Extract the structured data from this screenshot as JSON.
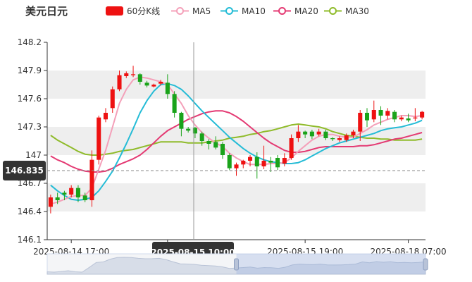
{
  "title": "美元日元",
  "legend": [
    {
      "label": "60分K线",
      "color": "#ee1111",
      "kind": "rect"
    },
    {
      "label": "MA5",
      "color": "#f4a0b9",
      "kind": "line"
    },
    {
      "label": "MA10",
      "color": "#25bcd6",
      "kind": "line"
    },
    {
      "label": "MA20",
      "color": "#e43a73",
      "kind": "line"
    },
    {
      "label": "MA30",
      "color": "#8fbb2a",
      "kind": "line"
    }
  ],
  "colors": {
    "up": "#ee1111",
    "down": "#1aa31a",
    "grid_band": "#eeeeee",
    "axis": "#333333"
  },
  "crosshair": {
    "price_label": "146.835",
    "time_label": "2025-08-15 10:00"
  },
  "chart_data": {
    "type": "candlestick",
    "ylim": [
      146.1,
      148.2
    ],
    "yticks": [
      "148.2",
      "147.9",
      "147.6",
      "147.3",
      "147",
      "146.7",
      "146.4",
      "146.1"
    ],
    "xticks": [
      {
        "i": 3,
        "label": "2025-08-14 17:00"
      },
      {
        "i": 17,
        "label": "2025-0"
      },
      {
        "i": 37,
        "label": "2025-08-15 19:00"
      },
      {
        "i": 52,
        "label": "2025-08-18 07:00"
      }
    ],
    "candles": [
      [
        146.45,
        146.55,
        146.38,
        146.58
      ],
      [
        146.55,
        146.52,
        146.48,
        146.6
      ],
      [
        146.6,
        146.58,
        146.52,
        146.62
      ],
      [
        146.58,
        146.65,
        146.55,
        146.68
      ],
      [
        146.65,
        146.55,
        146.5,
        146.68
      ],
      [
        146.57,
        146.52,
        146.5,
        146.6
      ],
      [
        146.52,
        146.95,
        146.45,
        147.05
      ],
      [
        146.95,
        147.4,
        146.9,
        147.42
      ],
      [
        147.38,
        147.45,
        147.35,
        147.5
      ],
      [
        147.5,
        147.7,
        147.45,
        147.73
      ],
      [
        147.7,
        147.85,
        147.68,
        147.9
      ],
      [
        147.84,
        147.87,
        147.82,
        147.89
      ],
      [
        147.85,
        147.86,
        147.83,
        147.95
      ],
      [
        147.86,
        147.78,
        147.75,
        147.87
      ],
      [
        147.77,
        147.74,
        147.72,
        147.79
      ],
      [
        147.73,
        147.75,
        147.72,
        147.76
      ],
      [
        147.76,
        147.78,
        147.74,
        147.8
      ],
      [
        147.77,
        147.65,
        147.6,
        147.86
      ],
      [
        147.65,
        147.45,
        147.4,
        147.68
      ],
      [
        147.45,
        147.28,
        147.2,
        147.46
      ],
      [
        147.28,
        147.26,
        147.24,
        147.3
      ],
      [
        147.29,
        147.23,
        147.18,
        147.3
      ],
      [
        147.23,
        147.15,
        147.1,
        147.25
      ],
      [
        147.15,
        147.12,
        147.06,
        147.17
      ],
      [
        147.14,
        147.08,
        147.06,
        147.2
      ],
      [
        147.12,
        147.0,
        146.96,
        147.14
      ],
      [
        147.0,
        146.86,
        146.84,
        147.02
      ],
      [
        146.86,
        146.9,
        146.78,
        146.92
      ],
      [
        146.9,
        146.94,
        146.86,
        146.95
      ],
      [
        146.94,
        146.98,
        146.88,
        147.0
      ],
      [
        146.98,
        146.88,
        146.75,
        147.03
      ],
      [
        146.88,
        146.94,
        146.85,
        147.1
      ],
      [
        146.94,
        146.92,
        146.82,
        146.98
      ],
      [
        146.97,
        146.87,
        146.84,
        147.0
      ],
      [
        146.91,
        146.97,
        146.88,
        147.02
      ],
      [
        146.97,
        147.18,
        146.95,
        147.22
      ],
      [
        147.18,
        147.25,
        147.14,
        147.32
      ],
      [
        147.25,
        147.22,
        147.18,
        147.26
      ],
      [
        147.25,
        147.2,
        147.17,
        147.27
      ],
      [
        147.22,
        147.25,
        147.2,
        147.28
      ],
      [
        147.25,
        147.18,
        147.16,
        147.27
      ],
      [
        147.18,
        147.17,
        147.15,
        147.19
      ],
      [
        147.16,
        147.18,
        147.14,
        147.2
      ],
      [
        147.16,
        147.21,
        147.14,
        147.23
      ],
      [
        147.21,
        147.25,
        147.18,
        147.27
      ],
      [
        147.25,
        147.45,
        147.15,
        147.48
      ],
      [
        147.45,
        147.37,
        147.3,
        147.5
      ],
      [
        147.38,
        147.48,
        147.35,
        147.58
      ],
      [
        147.48,
        147.42,
        147.32,
        147.52
      ],
      [
        147.42,
        147.47,
        147.38,
        147.5
      ],
      [
        147.46,
        147.38,
        147.35,
        147.48
      ],
      [
        147.38,
        147.4,
        147.36,
        147.42
      ],
      [
        147.39,
        147.37,
        147.35,
        147.44
      ],
      [
        147.39,
        147.4,
        147.36,
        147.5
      ],
      [
        147.4,
        147.46,
        147.38,
        147.47
      ]
    ],
    "ma5": [
      146.48,
      146.5,
      146.53,
      146.56,
      146.57,
      146.57,
      146.65,
      146.85,
      147.05,
      147.3,
      147.55,
      147.7,
      147.8,
      147.83,
      147.82,
      147.8,
      147.78,
      147.75,
      147.65,
      147.55,
      147.42,
      147.32,
      147.24,
      147.18,
      147.13,
      147.09,
      147.02,
      146.97,
      146.93,
      146.9,
      146.9,
      146.9,
      146.91,
      146.91,
      146.92,
      146.97,
      147.04,
      147.1,
      147.16,
      147.2,
      147.22,
      147.22,
      147.2,
      147.19,
      147.19,
      147.23,
      147.27,
      147.32,
      147.35,
      147.38,
      147.4,
      147.42,
      147.42,
      147.41,
      147.42
    ],
    "ma10": [
      146.68,
      146.62,
      146.57,
      146.53,
      146.52,
      146.53,
      146.55,
      146.62,
      146.72,
      146.83,
      146.97,
      147.12,
      147.28,
      147.45,
      147.58,
      147.68,
      147.75,
      147.76,
      147.74,
      147.7,
      147.63,
      147.55,
      147.47,
      147.4,
      147.33,
      147.26,
      147.19,
      147.13,
      147.07,
      147.02,
      146.98,
      146.95,
      146.93,
      146.92,
      146.91,
      146.91,
      146.92,
      146.95,
      146.99,
      147.03,
      147.07,
      147.1,
      147.13,
      147.15,
      147.17,
      147.19,
      147.21,
      147.23,
      147.26,
      147.28,
      147.29,
      147.3,
      147.32,
      147.34,
      147.37
    ],
    "ma20": [
      146.99,
      146.95,
      146.92,
      146.88,
      146.85,
      146.83,
      146.82,
      146.82,
      146.83,
      146.86,
      146.9,
      146.93,
      146.96,
      147.0,
      147.06,
      147.13,
      147.2,
      147.26,
      147.3,
      147.34,
      147.38,
      147.41,
      147.44,
      147.46,
      147.47,
      147.47,
      147.45,
      147.41,
      147.36,
      147.3,
      147.24,
      147.18,
      147.13,
      147.09,
      147.05,
      147.03,
      147.03,
      147.04,
      147.06,
      147.08,
      147.09,
      147.09,
      147.09,
      147.09,
      147.09,
      147.1,
      147.1,
      147.11,
      147.13,
      147.15,
      147.17,
      147.18,
      147.2,
      147.22,
      147.24
    ],
    "ma30": [
      147.21,
      147.16,
      147.12,
      147.08,
      147.04,
      147.01,
      147.0,
      147.0,
      147.01,
      147.02,
      147.04,
      147.05,
      147.06,
      147.08,
      147.1,
      147.12,
      147.14,
      147.14,
      147.14,
      147.14,
      147.13,
      147.13,
      147.13,
      147.14,
      147.15,
      147.16,
      147.18,
      147.19,
      147.2,
      147.22,
      147.23,
      147.25,
      147.26,
      147.28,
      147.3,
      147.32,
      147.33,
      147.32,
      147.31,
      147.3,
      147.28,
      147.25,
      147.23,
      147.21,
      147.2,
      147.19,
      147.18,
      147.18,
      147.17,
      147.17,
      147.16,
      147.16,
      147.16,
      147.16,
      147.17
    ]
  },
  "slider": {
    "start": 0.5,
    "end": 1.0
  }
}
